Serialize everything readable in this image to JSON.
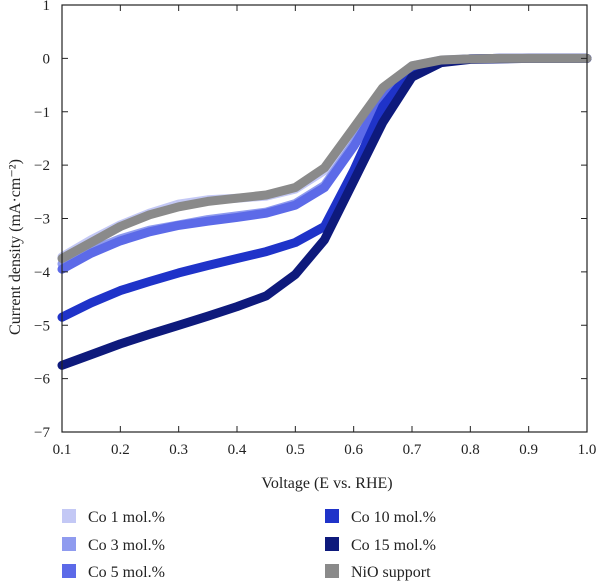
{
  "chart_data": {
    "type": "line",
    "xlabel": "Voltage (E vs. RHE)",
    "ylabel": "Current density (mA·cm⁻²)",
    "xlim": [
      0.1,
      1.0
    ],
    "ylim": [
      -7,
      1
    ],
    "xticks": [
      "0.1",
      "0.2",
      "0.3",
      "0.4",
      "0.5",
      "0.6",
      "0.7",
      "0.8",
      "0.9",
      "1.0"
    ],
    "yticks": [
      "1",
      "0",
      "−1",
      "−2",
      "−3",
      "−4",
      "−5",
      "−6",
      "−7"
    ],
    "grid": false,
    "legend_position": "bottom",
    "x": [
      0.1,
      0.15,
      0.2,
      0.25,
      0.3,
      0.35,
      0.4,
      0.45,
      0.5,
      0.55,
      0.6,
      0.65,
      0.7,
      0.75,
      0.8,
      0.85,
      0.9,
      0.95,
      1.0
    ],
    "series": [
      {
        "name": "Co 1 mol.%",
        "color": "#c3c8f5",
        "values": [
          -3.72,
          -3.4,
          -3.12,
          -2.9,
          -2.73,
          -2.65,
          -2.62,
          -2.58,
          -2.45,
          -2.1,
          -1.35,
          -0.58,
          -0.14,
          -0.03,
          -0.01,
          0.0,
          0.0,
          0.0,
          0.0
        ]
      },
      {
        "name": "Co 3 mol.%",
        "color": "#8f9bef",
        "values": [
          -3.85,
          -3.6,
          -3.38,
          -3.22,
          -3.12,
          -3.02,
          -2.95,
          -2.88,
          -2.72,
          -2.38,
          -1.6,
          -0.72,
          -0.18,
          -0.04,
          -0.01,
          0.0,
          0.0,
          0.0,
          0.0
        ]
      },
      {
        "name": "Co 5 mol.%",
        "color": "#5c6ae8",
        "values": [
          -3.95,
          -3.65,
          -3.42,
          -3.25,
          -3.13,
          -3.05,
          -2.98,
          -2.9,
          -2.75,
          -2.42,
          -1.65,
          -0.75,
          -0.2,
          -0.05,
          -0.01,
          0.0,
          0.0,
          0.0,
          0.0
        ]
      },
      {
        "name": "Co 10 mol.%",
        "color": "#1f33c9",
        "values": [
          -4.85,
          -4.58,
          -4.35,
          -4.18,
          -4.02,
          -3.88,
          -3.75,
          -3.62,
          -3.45,
          -3.15,
          -2.1,
          -0.9,
          -0.22,
          -0.05,
          -0.01,
          0.0,
          0.0,
          0.0,
          0.0
        ]
      },
      {
        "name": "Co 15 mol.%",
        "color": "#0e1a7c",
        "values": [
          -5.75,
          -5.55,
          -5.35,
          -5.17,
          -5.0,
          -4.83,
          -4.65,
          -4.45,
          -4.05,
          -3.4,
          -2.3,
          -1.2,
          -0.35,
          -0.08,
          -0.02,
          -0.01,
          0.0,
          0.0,
          0.0
        ]
      },
      {
        "name": "NiO support",
        "color": "#8a8a8a",
        "values": [
          -3.75,
          -3.45,
          -3.15,
          -2.93,
          -2.78,
          -2.68,
          -2.62,
          -2.56,
          -2.42,
          -2.05,
          -1.3,
          -0.55,
          -0.14,
          -0.03,
          -0.01,
          0.0,
          0.0,
          0.0,
          0.0
        ]
      }
    ]
  }
}
